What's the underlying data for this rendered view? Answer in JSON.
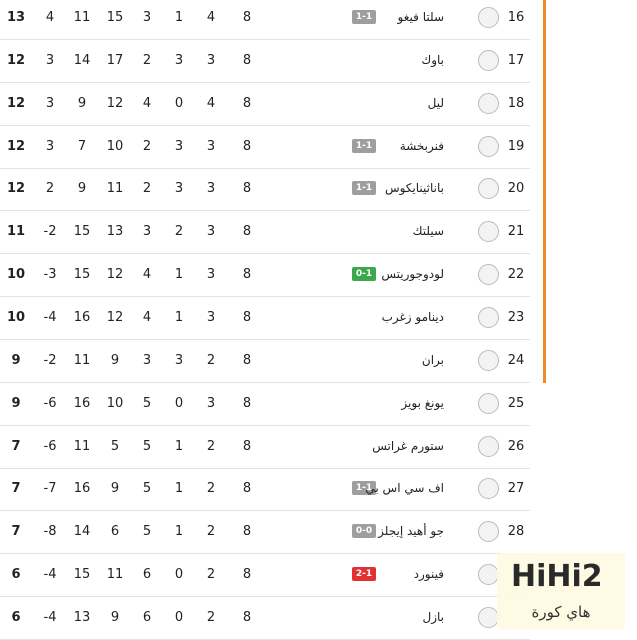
{
  "table": {
    "rows": [
      {
        "rank": "16",
        "team": "سلتا فيغو",
        "last_result": {
          "score": "1-1",
          "color": "#9e9e9e"
        },
        "stats": [
          "13",
          "4",
          "11",
          "15",
          "3",
          "1",
          "4",
          "8"
        ]
      },
      {
        "rank": "17",
        "team": "باوك",
        "stats": [
          "12",
          "3",
          "14",
          "17",
          "2",
          "3",
          "3",
          "8"
        ]
      },
      {
        "rank": "18",
        "team": "ليل",
        "stats": [
          "12",
          "3",
          "9",
          "12",
          "4",
          "0",
          "4",
          "8"
        ]
      },
      {
        "rank": "19",
        "team": "فنربخشة",
        "last_result": {
          "score": "1-1",
          "color": "#9e9e9e"
        },
        "stats": [
          "12",
          "3",
          "7",
          "10",
          "2",
          "3",
          "3",
          "8"
        ]
      },
      {
        "rank": "20",
        "team": "باناثينايكوس",
        "last_result": {
          "score": "1-1",
          "color": "#9e9e9e"
        },
        "stats": [
          "12",
          "2",
          "9",
          "11",
          "2",
          "3",
          "3",
          "8"
        ]
      },
      {
        "rank": "21",
        "team": "سيلتك",
        "stats": [
          "11",
          "-2",
          "15",
          "13",
          "3",
          "2",
          "3",
          "8"
        ]
      },
      {
        "rank": "22",
        "team": "لودوجوريتس",
        "last_result": {
          "score": "0-1",
          "color": "#3aa94b"
        },
        "stats": [
          "10",
          "-3",
          "15",
          "12",
          "4",
          "1",
          "3",
          "8"
        ]
      },
      {
        "rank": "23",
        "team": "دينامو زغرب",
        "stats": [
          "10",
          "-4",
          "16",
          "12",
          "4",
          "1",
          "3",
          "8"
        ]
      },
      {
        "rank": "24",
        "team": "بران",
        "stats": [
          "9",
          "-2",
          "11",
          "9",
          "3",
          "3",
          "2",
          "8"
        ]
      },
      {
        "rank": "25",
        "team": "يونغ بويز",
        "stats": [
          "9",
          "-6",
          "16",
          "10",
          "5",
          "0",
          "3",
          "8"
        ]
      },
      {
        "rank": "26",
        "team": "ستورم غراتس",
        "stats": [
          "7",
          "-6",
          "11",
          "5",
          "5",
          "1",
          "2",
          "8"
        ]
      },
      {
        "rank": "27",
        "team": "اف سي اس بي",
        "last_result": {
          "score": "1-1",
          "color": "#9e9e9e"
        },
        "stats": [
          "7",
          "-7",
          "16",
          "9",
          "5",
          "1",
          "2",
          "8"
        ]
      },
      {
        "rank": "28",
        "team": "جو أهيد إيجلز",
        "last_result": {
          "score": "0-0",
          "color": "#9e9e9e"
        },
        "stats": [
          "7",
          "-8",
          "14",
          "6",
          "5",
          "1",
          "2",
          "8"
        ]
      },
      {
        "team": "فينورد",
        "last_result": {
          "score": "2-1",
          "color": "#e03232"
        },
        "stats": [
          "6",
          "-4",
          "15",
          "11",
          "6",
          "0",
          "2",
          "8"
        ]
      },
      {
        "team": "بازل",
        "stats": [
          "6",
          "-4",
          "13",
          "9",
          "6",
          "0",
          "2",
          "8"
        ]
      }
    ]
  },
  "watermark": {
    "logo": "HiHi2",
    "site": "هاي كورة"
  }
}
